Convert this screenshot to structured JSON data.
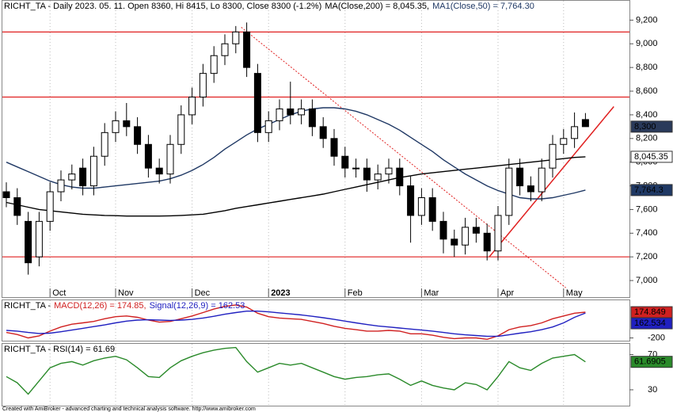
{
  "chart_data": [
    {
      "type": "candlestick",
      "title": "RICHT_TA - Daily 2023. 05. 11. Open 8360, Hi 8415, Lo 8300, Close 8300 (-1.2%)",
      "categories": [
        null,
        null,
        null,
        null,
        "Oct",
        null,
        null,
        null,
        null,
        null,
        "Nov",
        null,
        null,
        null,
        null,
        null,
        null,
        "Dec",
        null,
        null,
        null,
        null,
        null,
        null,
        "2023",
        null,
        null,
        null,
        null,
        null,
        null,
        "Feb",
        null,
        null,
        null,
        null,
        null,
        null,
        "Mar",
        null,
        null,
        null,
        null,
        null,
        null,
        "Apr",
        null,
        null,
        null,
        null,
        null,
        "May",
        null,
        null
      ],
      "open": [
        7750,
        7700,
        7500,
        7200,
        7500,
        7750,
        7850,
        7950,
        7800,
        8050,
        8250,
        8350,
        8300,
        8150,
        7950,
        7900,
        8150,
        8400,
        8550,
        8750,
        8900,
        9000,
        9100,
        8750,
        8250,
        8350,
        8450,
        8400,
        8450,
        8300,
        8200,
        8050,
        7950,
        7950,
        7850,
        7900,
        7950,
        7800,
        7550,
        7700,
        7500,
        7350,
        7300,
        7450,
        7400,
        7250,
        7550,
        7950,
        7800,
        7750,
        7950,
        8150,
        8200,
        8360
      ],
      "high": [
        7830,
        7780,
        7580,
        7580,
        7830,
        7930,
        7980,
        8030,
        8130,
        8330,
        8430,
        8500,
        8380,
        8230,
        8030,
        8230,
        8480,
        8630,
        8830,
        8980,
        9080,
        9150,
        9180,
        8830,
        8430,
        8530,
        8680,
        8530,
        8530,
        8380,
        8280,
        8130,
        8030,
        8030,
        7980,
        8030,
        8030,
        7880,
        7780,
        7780,
        7580,
        7430,
        7530,
        7530,
        7480,
        7630,
        8030,
        8030,
        7880,
        8030,
        8230,
        8280,
        8420,
        8415
      ],
      "low": [
        7620,
        7470,
        7050,
        7120,
        7420,
        7670,
        7770,
        7720,
        7720,
        7970,
        8170,
        8220,
        8070,
        7870,
        7820,
        7820,
        8070,
        8320,
        8470,
        8670,
        8820,
        8920,
        8720,
        8170,
        8170,
        8270,
        8320,
        8320,
        8220,
        8120,
        7970,
        7870,
        7870,
        7750,
        7770,
        7820,
        7720,
        7320,
        7470,
        7420,
        7230,
        7200,
        7220,
        7320,
        7170,
        7170,
        7470,
        7720,
        7670,
        7670,
        7870,
        8070,
        8120,
        8300
      ],
      "close": [
        7700,
        7550,
        7150,
        7500,
        7750,
        7850,
        7900,
        7800,
        8050,
        8250,
        8350,
        8300,
        8150,
        7950,
        7900,
        8150,
        8400,
        8550,
        8750,
        8900,
        9000,
        9100,
        8800,
        8250,
        8350,
        8450,
        8400,
        8450,
        8300,
        8200,
        8050,
        7950,
        7950,
        7850,
        7900,
        7950,
        7800,
        7550,
        7700,
        7500,
        7350,
        7300,
        7450,
        7400,
        7250,
        7550,
        7950,
        7800,
        7750,
        7950,
        8150,
        8200,
        8300,
        8300
      ],
      "last_label": "8,300",
      "color_up": "#ffffff",
      "color_down": "#000000",
      "series": [
        {
          "name": "MA(Close,200) = 8,045.35,",
          "color": "#000000",
          "last_label": "8,045.35",
          "values": [
            7660,
            7640,
            7620,
            7600,
            7590,
            7580,
            7570,
            7560,
            7555,
            7550,
            7548,
            7545,
            7545,
            7545,
            7545,
            7547,
            7550,
            7555,
            7560,
            7575,
            7590,
            7610,
            7625,
            7640,
            7655,
            7670,
            7685,
            7700,
            7715,
            7730,
            7750,
            7770,
            7790,
            7810,
            7830,
            7850,
            7870,
            7885,
            7900,
            7910,
            7920,
            7930,
            7940,
            7950,
            7960,
            7970,
            7980,
            7990,
            8000,
            8010,
            8020,
            8030,
            8040,
            8045.35
          ]
        },
        {
          "name": "MA1(Close,50) = 7,764.30",
          "color": "#1f3864",
          "last_label": "7,764.3",
          "values": [
            8000,
            7960,
            7920,
            7880,
            7840,
            7810,
            7790,
            7780,
            7780,
            7790,
            7800,
            7810,
            7820,
            7830,
            7840,
            7860,
            7890,
            7930,
            7980,
            8040,
            8110,
            8170,
            8230,
            8280,
            8320,
            8360,
            8400,
            8430,
            8450,
            8460,
            8460,
            8450,
            8430,
            8400,
            8360,
            8320,
            8270,
            8210,
            8150,
            8090,
            8020,
            7960,
            7900,
            7850,
            7800,
            7760,
            7730,
            7700,
            7690,
            7690,
            7700,
            7720,
            7740,
            7764.3
          ]
        }
      ],
      "hlines": [
        9100,
        8550,
        7200
      ],
      "trendlines": [
        {
          "style": "dotted",
          "x": [
            21.5,
            51.2
          ],
          "y": [
            9140,
            6940
          ]
        },
        {
          "style": "solid",
          "x": [
            44.2,
            55.6
          ],
          "y": [
            7200,
            8470
          ]
        }
      ],
      "line_color": "#e02020",
      "ylim": [
        6860,
        9370
      ],
      "yticks": [
        {
          "value": 7000,
          "label": "7,000"
        },
        {
          "value": 7200,
          "label": "7,200"
        },
        {
          "value": 7400,
          "label": "7,400"
        },
        {
          "value": 7600,
          "label": "7,600"
        },
        {
          "value": 7800,
          "label": "7,800"
        },
        {
          "value": 8000,
          "label": "8,000"
        },
        {
          "value": 8200,
          "label": "8,200"
        },
        {
          "value": 8400,
          "label": "8,400"
        },
        {
          "value": 8600,
          "label": "8,600"
        },
        {
          "value": 8800,
          "label": "8,800"
        },
        {
          "value": 9000,
          "label": "9,000"
        },
        {
          "value": 9200,
          "label": "9,200"
        }
      ]
    },
    {
      "type": "line",
      "title": "RICHT_TA -",
      "series": [
        {
          "name": "MACD(12,26) = 174.85,",
          "color": "#d02020",
          "last_label": "174.849",
          "values": [
            -120,
            -150,
            -200,
            -170,
            -100,
            -40,
            0,
            20,
            40,
            80,
            110,
            120,
            100,
            60,
            30,
            40,
            80,
            120,
            170,
            220,
            260,
            280,
            250,
            160,
            110,
            90,
            80,
            70,
            40,
            10,
            -30,
            -60,
            -80,
            -100,
            -100,
            -90,
            -100,
            -140,
            -140,
            -160,
            -190,
            -210,
            -200,
            -200,
            -220,
            -170,
            -80,
            -40,
            -20,
            20,
            80,
            120,
            160,
            174.849
          ]
        },
        {
          "name": "Signal(12,26,9) = 162.53",
          "color": "#2020c0",
          "last_label": "162.534",
          "values": [
            -90,
            -100,
            -120,
            -135,
            -130,
            -110,
            -85,
            -60,
            -35,
            -10,
            20,
            45,
            60,
            65,
            60,
            55,
            60,
            70,
            90,
            115,
            145,
            170,
            190,
            190,
            180,
            165,
            150,
            135,
            115,
            95,
            70,
            45,
            20,
            -5,
            -25,
            -40,
            -55,
            -70,
            -85,
            -100,
            -120,
            -140,
            -155,
            -165,
            -175,
            -175,
            -155,
            -130,
            -110,
            -80,
            -40,
            20,
            100,
            162.534
          ]
        }
      ],
      "ylim": [
        -240,
        360
      ],
      "yticks": [
        -200
      ]
    },
    {
      "type": "line",
      "title": "RICHT_TA - RSI(14) = 61.69",
      "series": [
        {
          "color": "#2a8a2a",
          "last_label": "61.6905",
          "values": [
            45,
            38,
            25,
            40,
            55,
            60,
            62,
            58,
            63,
            66,
            68,
            64,
            55,
            45,
            44,
            55,
            63,
            68,
            72,
            75,
            77,
            78,
            62,
            50,
            55,
            60,
            58,
            60,
            55,
            50,
            45,
            42,
            44,
            45,
            47,
            48,
            42,
            35,
            40,
            35,
            32,
            30,
            38,
            36,
            30,
            45,
            62,
            55,
            52,
            60,
            66,
            68,
            70,
            61.6905
          ]
        }
      ],
      "ylim": [
        12,
        83
      ],
      "yticks": [
        70,
        30
      ]
    }
  ],
  "footer": "Created with AmiBroker - advanced charting and technical analysis software. http://www.amibroker.com"
}
